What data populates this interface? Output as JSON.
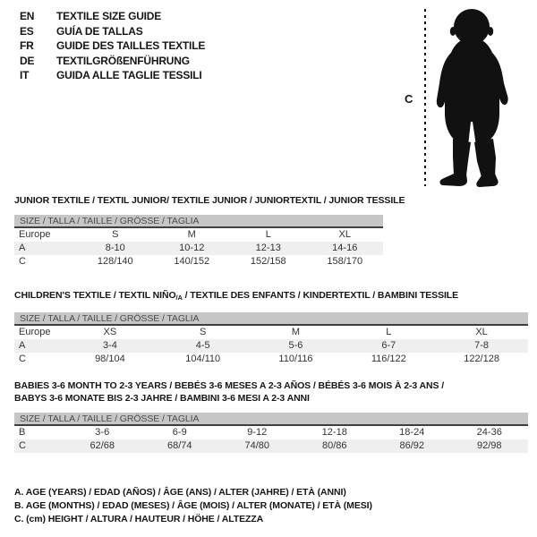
{
  "colors": {
    "size_bar_bg": "#c6c6c6",
    "size_bar_underline": "#3f3f3f",
    "shaded_row_bg": "#efefef",
    "text": "#161616",
    "silhouette": "#111111"
  },
  "languages": [
    {
      "code": "EN",
      "text": "TEXTILE SIZE GUIDE"
    },
    {
      "code": "ES",
      "text": "GUÍA DE TALLAS"
    },
    {
      "code": "FR",
      "text": "GUIDE DES TAILLES TEXTILE"
    },
    {
      "code": "DE",
      "text": "TEXTILGRÖßENFÜHRUNG"
    },
    {
      "code": "IT",
      "text": "GUIDA ALLE TAGLIE TESSILI"
    }
  ],
  "figure": {
    "height_label": "C",
    "silhouette_name": "standing-toddler-silhouette"
  },
  "tables": [
    {
      "title_parts": [
        {
          "t": "JUNIOR TEXTILE / TEXTIL JUNIOR/ TEXTILE JUNIOR / JUNIORTEXTIL / JUNIOR TESSILE"
        }
      ],
      "size_header": "SIZE / TALLA / TAILLE / GRÖSSE / TAGLIA",
      "rows": [
        {
          "label": "Europe",
          "values": [
            "S",
            "M",
            "L",
            "XL"
          ],
          "shaded": false
        },
        {
          "label": "A",
          "values": [
            "8-10",
            "10-12",
            "12-13",
            "14-16"
          ],
          "shaded": true
        },
        {
          "label": "C",
          "values": [
            "128/140",
            "140/152",
            "152/158",
            "158/170"
          ],
          "shaded": false
        }
      ]
    },
    {
      "title_parts": [
        {
          "t": "CHILDREN'S TEXTILE / TEXTIL NIÑO"
        },
        {
          "t": "/A",
          "sub": true
        },
        {
          "t": " / TEXTILE DES ENFANTS / KINDERTEXTIL / BAMBINI TESSILE"
        }
      ],
      "size_header": "SIZE / TALLA / TAILLE / GRÖSSE / TAGLIA",
      "rows": [
        {
          "label": "Europe",
          "values": [
            "XS",
            "S",
            "M",
            "L",
            "XL"
          ],
          "shaded": false
        },
        {
          "label": "A",
          "values": [
            "3-4",
            "4-5",
            "5-6",
            "6-7",
            "7-8"
          ],
          "shaded": true
        },
        {
          "label": "C",
          "values": [
            "98/104",
            "104/110",
            "110/116",
            "116/122",
            "122/128"
          ],
          "shaded": false
        }
      ]
    },
    {
      "title_parts": [
        {
          "t": "BABIES 3-6 MONTH TO 2-3 YEARS / BEBÉS 3-6 MESES A 2-3 AÑOS / BÉBÉS 3-6 MOIS À 2-3 ANS / BABYS 3-6 MONATE BIS 2-3 JAHRE / BAMBINI 3-6 MESI A 2-3 ANNI"
        }
      ],
      "size_header": "SIZE / TALLA / TAILLE / GRÖSSE / TAGLIA",
      "rows": [
        {
          "label": "B",
          "values": [
            "3-6",
            "6-9",
            "9-12",
            "12-18",
            "18-24",
            "24-36"
          ],
          "shaded": false
        },
        {
          "label": "C",
          "values": [
            "62/68",
            "68/74",
            "74/80",
            "80/86",
            "86/92",
            "92/98"
          ],
          "shaded": true
        }
      ]
    }
  ],
  "notes": [
    "A. AGE (YEARS) / EDAD (AÑOS) / ÂGE (ANS) / ALTER (JAHRE) / ETÀ (ANNI)",
    "B. AGE (MONTHS) / EDAD (MESES) / ÂGE (MOIS) / ALTER (MONATE) / ETÀ (MESI)",
    "C. (cm) HEIGHT / ALTURA / HAUTEUR / HÖHE / ALTEZZA"
  ]
}
